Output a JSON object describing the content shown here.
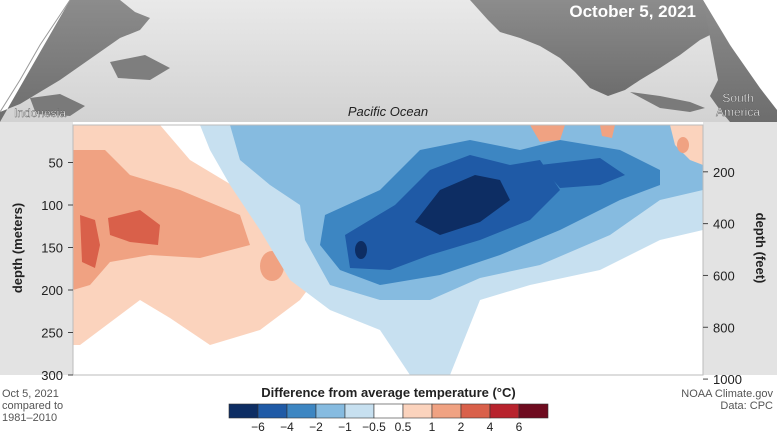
{
  "header": {
    "date": "October 5, 2021",
    "region_left": "Indonesia",
    "region_right_line1": "South",
    "region_right_line2": "America",
    "ocean_label": "Pacific Ocean"
  },
  "chart_data": {
    "type": "heatmap",
    "title": "October 5, 2021",
    "x_axis": {
      "from": "Indonesia",
      "to": "South America",
      "label": "Pacific Ocean"
    },
    "y_left": {
      "label": "depth (meters)",
      "ticks": [
        50,
        100,
        150,
        200,
        250,
        300
      ],
      "range": [
        10,
        300
      ],
      "reversed": true
    },
    "y_right": {
      "label": "depth (feet)",
      "ticks": [
        200,
        400,
        600,
        800,
        1000
      ]
    },
    "colorbar": {
      "label": "Difference from average temperature (°C)",
      "boundaries": [
        "−6",
        "−4",
        "−2",
        "−1",
        "−0.5",
        "0.5",
        "1",
        "2",
        "4",
        "6"
      ],
      "colors": [
        "#0d2d63",
        "#1f5aa6",
        "#3d86c2",
        "#86bbe0",
        "#c7e0f0",
        "#ffffff",
        "#fbd3bd",
        "#f0a282",
        "#d9604a",
        "#b8232d",
        "#6e0b1f"
      ]
    },
    "features": [
      {
        "sign": "warm",
        "area": "western Pacific near Indonesia",
        "depth_m": [
          30,
          300
        ],
        "peak_anomaly_c": 4
      },
      {
        "sign": "cool",
        "area": "central-eastern Pacific",
        "depth_m": [
          40,
          230
        ],
        "peak_anomaly_c": -6
      },
      {
        "sign": "warm",
        "area": "near South America surface",
        "depth_m": [
          10,
          40
        ],
        "peak_anomaly_c": 2
      }
    ]
  },
  "footer": {
    "left_line1": "Oct 5, 2021",
    "left_line2": "compared to",
    "left_line3": "1981–2010",
    "right_line1": "NOAA Climate.gov",
    "right_line2": "Data: CPC"
  }
}
